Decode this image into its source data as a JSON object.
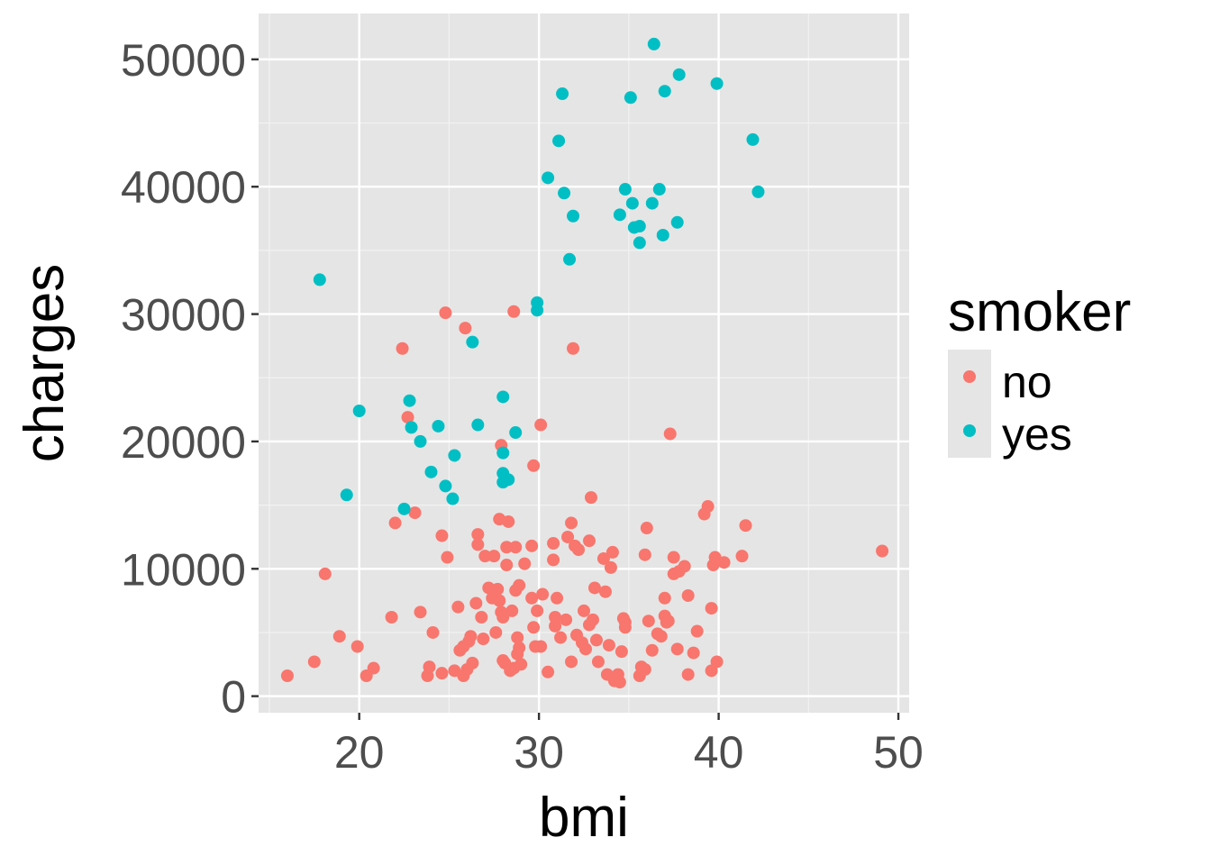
{
  "chart_data": {
    "type": "scatter",
    "xlabel": "bmi",
    "ylabel": "charges",
    "xlim": [
      14.4,
      50.6
    ],
    "ylim": [
      -1300,
      53600
    ],
    "x_ticks": [
      20,
      30,
      40,
      50
    ],
    "x_tick_labels": [
      "20",
      "30",
      "40",
      "50"
    ],
    "y_ticks": [
      0,
      10000,
      20000,
      30000,
      40000,
      50000
    ],
    "y_tick_labels": [
      "0",
      "10000",
      "20000",
      "30000",
      "40000",
      "50000"
    ],
    "grid": true,
    "background": "#e5e5e5",
    "legend": {
      "title": "smoker",
      "position": "right"
    },
    "series": [
      {
        "name": "no",
        "color": "#f8766d",
        "points": [
          [
            16.0,
            1600
          ],
          [
            17.5,
            2700
          ],
          [
            18.1,
            9600
          ],
          [
            18.9,
            4700
          ],
          [
            19.9,
            3900
          ],
          [
            20.4,
            1600
          ],
          [
            20.8,
            2200
          ],
          [
            21.8,
            6200
          ],
          [
            22.0,
            13600
          ],
          [
            22.4,
            27300
          ],
          [
            22.7,
            21900
          ],
          [
            23.1,
            14400
          ],
          [
            23.4,
            6600
          ],
          [
            23.8,
            1600
          ],
          [
            23.9,
            2300
          ],
          [
            24.1,
            5000
          ],
          [
            24.6,
            12600
          ],
          [
            24.6,
            1800
          ],
          [
            24.8,
            30100
          ],
          [
            24.9,
            10900
          ],
          [
            25.3,
            2000
          ],
          [
            25.5,
            7000
          ],
          [
            25.6,
            3600
          ],
          [
            25.8,
            3900
          ],
          [
            25.8,
            1600
          ],
          [
            25.9,
            28900
          ],
          [
            26.0,
            2100
          ],
          [
            26.1,
            4300
          ],
          [
            26.2,
            4700
          ],
          [
            26.3,
            2600
          ],
          [
            26.5,
            7300
          ],
          [
            26.6,
            12700
          ],
          [
            26.6,
            11900
          ],
          [
            26.8,
            6200
          ],
          [
            26.9,
            4500
          ],
          [
            27.0,
            11000
          ],
          [
            27.2,
            8500
          ],
          [
            27.4,
            7700
          ],
          [
            27.5,
            11000
          ],
          [
            27.6,
            5000
          ],
          [
            27.7,
            8400
          ],
          [
            27.8,
            7500
          ],
          [
            27.8,
            13900
          ],
          [
            27.9,
            19700
          ],
          [
            27.9,
            6600
          ],
          [
            28.0,
            6200
          ],
          [
            28.0,
            2800
          ],
          [
            28.1,
            2600
          ],
          [
            28.2,
            11700
          ],
          [
            28.2,
            10300
          ],
          [
            28.3,
            13700
          ],
          [
            28.4,
            2000
          ],
          [
            28.5,
            6700
          ],
          [
            28.6,
            30200
          ],
          [
            28.6,
            2200
          ],
          [
            28.7,
            11700
          ],
          [
            28.7,
            8300
          ],
          [
            28.8,
            3300
          ],
          [
            28.8,
            4600
          ],
          [
            28.9,
            3800
          ],
          [
            28.9,
            8700
          ],
          [
            29.0,
            2500
          ],
          [
            29.2,
            10400
          ],
          [
            29.6,
            11800
          ],
          [
            29.6,
            7700
          ],
          [
            29.7,
            18100
          ],
          [
            29.7,
            5400
          ],
          [
            29.8,
            3900
          ],
          [
            29.9,
            6700
          ],
          [
            30.1,
            21300
          ],
          [
            30.1,
            3900
          ],
          [
            30.2,
            8000
          ],
          [
            30.5,
            1900
          ],
          [
            30.8,
            10700
          ],
          [
            30.8,
            12000
          ],
          [
            30.9,
            5500
          ],
          [
            30.9,
            6200
          ],
          [
            31.0,
            7700
          ],
          [
            31.2,
            4600
          ],
          [
            31.5,
            6000
          ],
          [
            31.6,
            12500
          ],
          [
            31.8,
            13600
          ],
          [
            31.8,
            2700
          ],
          [
            31.9,
            27300
          ],
          [
            32.0,
            11800
          ],
          [
            32.1,
            4800
          ],
          [
            32.2,
            11500
          ],
          [
            32.4,
            4200
          ],
          [
            32.5,
            6700
          ],
          [
            32.6,
            3700
          ],
          [
            32.8,
            12200
          ],
          [
            32.8,
            5600
          ],
          [
            32.9,
            15600
          ],
          [
            33.0,
            6000
          ],
          [
            33.1,
            8500
          ],
          [
            33.2,
            4400
          ],
          [
            33.3,
            2700
          ],
          [
            33.6,
            10800
          ],
          [
            33.7,
            8200
          ],
          [
            33.8,
            1700
          ],
          [
            33.9,
            4000
          ],
          [
            34.0,
            10100
          ],
          [
            34.1,
            11300
          ],
          [
            34.2,
            1200
          ],
          [
            34.4,
            1700
          ],
          [
            34.5,
            1100
          ],
          [
            34.6,
            3500
          ],
          [
            34.7,
            6100
          ],
          [
            34.8,
            5400
          ],
          [
            34.8,
            5800
          ],
          [
            35.6,
            1600
          ],
          [
            35.7,
            2300
          ],
          [
            35.9,
            11100
          ],
          [
            35.9,
            2100
          ],
          [
            36.0,
            13200
          ],
          [
            36.1,
            5900
          ],
          [
            36.3,
            3600
          ],
          [
            36.6,
            4900
          ],
          [
            36.8,
            4700
          ],
          [
            37.0,
            6300
          ],
          [
            37.0,
            7700
          ],
          [
            37.1,
            5800
          ],
          [
            37.2,
            5900
          ],
          [
            37.3,
            20600
          ],
          [
            37.5,
            10900
          ],
          [
            37.5,
            9600
          ],
          [
            37.7,
            3700
          ],
          [
            37.8,
            9800
          ],
          [
            38.1,
            10200
          ],
          [
            38.3,
            7900
          ],
          [
            38.3,
            1700
          ],
          [
            38.6,
            3400
          ],
          [
            38.8,
            5100
          ],
          [
            39.2,
            14300
          ],
          [
            39.4,
            14900
          ],
          [
            39.6,
            6900
          ],
          [
            39.6,
            2000
          ],
          [
            39.7,
            10300
          ],
          [
            39.8,
            10900
          ],
          [
            39.9,
            2700
          ],
          [
            40.3,
            10500
          ],
          [
            41.3,
            11000
          ],
          [
            41.5,
            13400
          ],
          [
            49.1,
            11400
          ]
        ]
      },
      {
        "name": "yes",
        "color": "#00bfc4",
        "points": [
          [
            17.8,
            32700
          ],
          [
            19.3,
            15800
          ],
          [
            20.0,
            22400
          ],
          [
            22.5,
            14700
          ],
          [
            22.8,
            23200
          ],
          [
            22.9,
            21100
          ],
          [
            23.4,
            20000
          ],
          [
            24.0,
            17600
          ],
          [
            24.4,
            21200
          ],
          [
            24.8,
            16500
          ],
          [
            25.3,
            18900
          ],
          [
            25.2,
            15500
          ],
          [
            26.3,
            27800
          ],
          [
            26.6,
            21300
          ],
          [
            28.0,
            23500
          ],
          [
            28.0,
            19100
          ],
          [
            28.0,
            16800
          ],
          [
            28.0,
            17500
          ],
          [
            28.3,
            17000
          ],
          [
            28.7,
            20700
          ],
          [
            29.9,
            30300
          ],
          [
            29.9,
            30900
          ],
          [
            30.5,
            40700
          ],
          [
            31.1,
            43600
          ],
          [
            31.3,
            47300
          ],
          [
            31.4,
            39500
          ],
          [
            31.7,
            34300
          ],
          [
            31.9,
            37700
          ],
          [
            34.5,
            37800
          ],
          [
            34.8,
            39800
          ],
          [
            35.1,
            47000
          ],
          [
            35.2,
            38700
          ],
          [
            35.3,
            36800
          ],
          [
            35.6,
            35600
          ],
          [
            35.6,
            36900
          ],
          [
            36.3,
            38700
          ],
          [
            36.4,
            51200
          ],
          [
            36.7,
            39800
          ],
          [
            36.9,
            36200
          ],
          [
            37.0,
            47500
          ],
          [
            37.7,
            37200
          ],
          [
            37.8,
            48800
          ],
          [
            39.9,
            48100
          ],
          [
            41.9,
            43700
          ],
          [
            42.2,
            39600
          ]
        ]
      }
    ]
  }
}
